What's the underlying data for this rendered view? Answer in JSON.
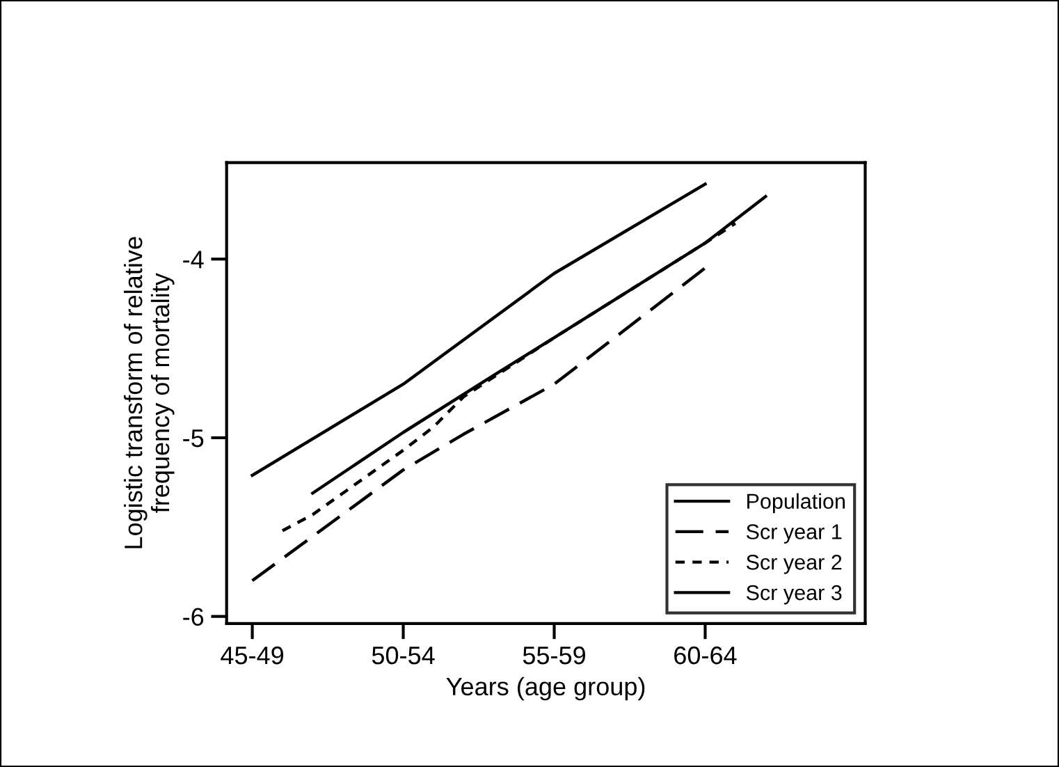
{
  "chart_data": {
    "type": "line",
    "xlabel": "Years (age group)",
    "ylabel": "Logistic transform of relative\nfrequency of mortality",
    "categories": [
      "45-49",
      null,
      null,
      null,
      null,
      "50-54",
      null,
      null,
      null,
      null,
      "55-59",
      null,
      null,
      null,
      null,
      "60-64",
      null,
      null
    ],
    "ylim": [
      -6.04,
      -3.46
    ],
    "yticks": [
      -6,
      -5,
      -4
    ],
    "grid": false,
    "legend": "bottom right",
    "marker": "none",
    "series": [
      {
        "name": "Population",
        "color": "#000000",
        "line_style": "solid",
        "values": [
          -5.21,
          null,
          null,
          null,
          null,
          -4.7,
          null,
          null,
          null,
          null,
          -4.08,
          null,
          null,
          null,
          null,
          -3.58,
          null,
          null
        ]
      },
      {
        "name": "Scr year 1",
        "color": "#000000",
        "line_style": "dashed",
        "values": [
          -5.8,
          null,
          null,
          null,
          null,
          -5.18,
          null,
          -4.98,
          null,
          null,
          -4.7,
          null,
          null,
          null,
          null,
          -4.05,
          null,
          null
        ]
      },
      {
        "name": "Scr year 2",
        "color": "#000000",
        "line_style": "dotted",
        "values": [
          null,
          -5.52,
          -5.43,
          null,
          null,
          -5.07,
          -4.94,
          -4.77,
          null,
          null,
          -4.44,
          null,
          null,
          null,
          null,
          -3.91,
          -3.8,
          null
        ]
      },
      {
        "name": "Scr year 3",
        "color": "#000000",
        "line_style": "solid",
        "values": [
          null,
          null,
          -5.31,
          null,
          null,
          -4.97,
          null,
          null,
          -4.65,
          null,
          -4.44,
          null,
          null,
          null,
          null,
          -3.91,
          null,
          -3.65
        ]
      }
    ]
  }
}
